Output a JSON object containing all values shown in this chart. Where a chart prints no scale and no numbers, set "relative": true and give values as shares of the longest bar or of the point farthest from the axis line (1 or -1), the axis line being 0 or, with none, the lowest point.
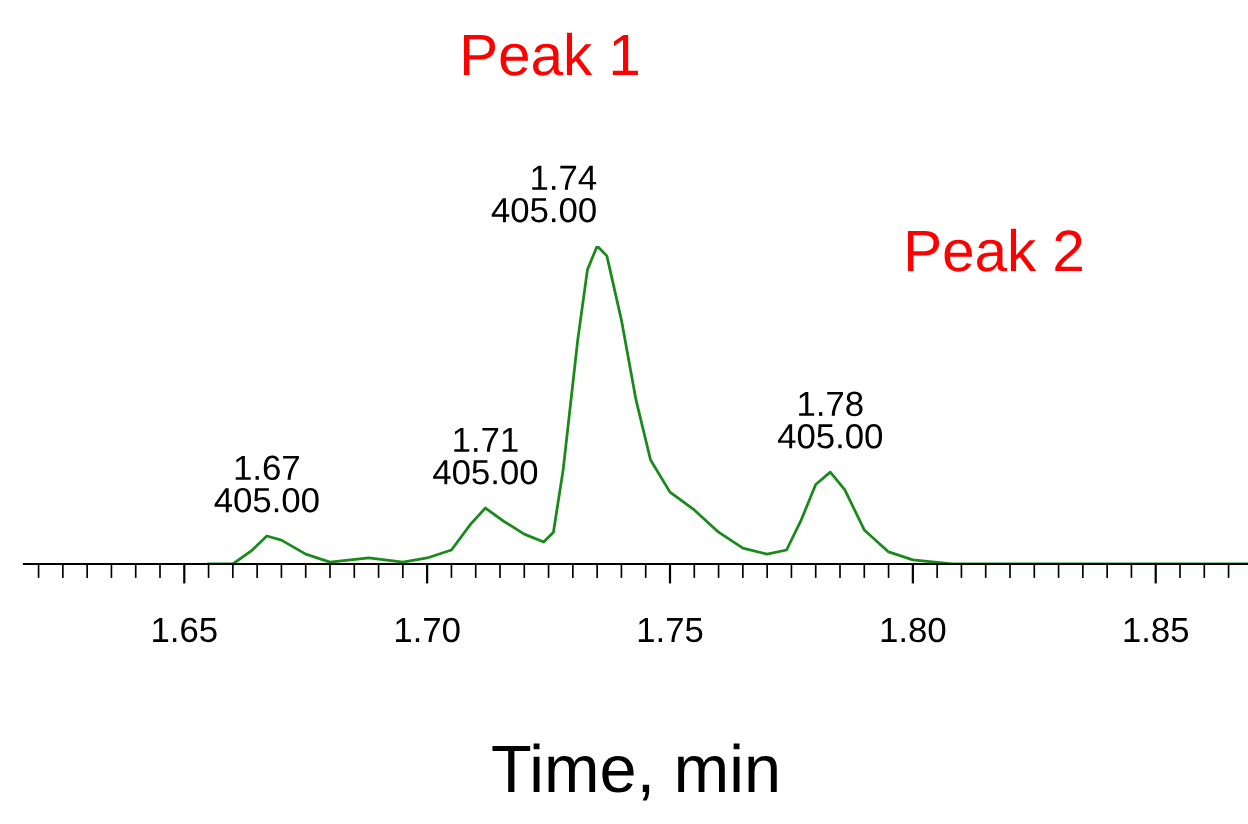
{
  "chart_data": {
    "type": "line",
    "relative": true,
    "xlabel": "Time, min",
    "x": [
      1.655,
      1.66,
      1.664,
      1.667,
      1.67,
      1.675,
      1.68,
      1.688,
      1.695,
      1.7,
      1.705,
      1.709,
      1.712,
      1.716,
      1.72,
      1.724,
      1.726,
      1.728,
      1.731,
      1.733,
      1.735,
      1.737,
      1.74,
      1.743,
      1.746,
      1.75,
      1.755,
      1.76,
      1.765,
      1.77,
      1.774,
      1.777,
      1.78,
      1.783,
      1.786,
      1.79,
      1.795,
      1.8,
      1.808,
      1.869
    ],
    "series": [
      {
        "color": "#1a8a1a",
        "values": [
          0,
          0,
          0.044,
          0.088,
          0.075,
          0.031,
          0.006,
          0.019,
          0.006,
          0.019,
          0.044,
          0.126,
          0.176,
          0.132,
          0.094,
          0.069,
          0.1,
          0.296,
          0.704,
          0.925,
          1,
          0.969,
          0.767,
          0.516,
          0.327,
          0.226,
          0.17,
          0.1,
          0.05,
          0.031,
          0.044,
          0.138,
          0.25,
          0.289,
          0.233,
          0.107,
          0.038,
          0.013,
          0,
          0
        ]
      }
    ],
    "xlim": [
      1.617,
      1.869
    ],
    "xticks": [
      {
        "value": 1.62,
        "label": null
      },
      {
        "value": 1.625,
        "label": null
      },
      {
        "value": 1.63,
        "label": null
      },
      {
        "value": 1.635,
        "label": null
      },
      {
        "value": 1.64,
        "label": null
      },
      {
        "value": 1.645,
        "label": null
      },
      {
        "value": 1.65,
        "label": "1.65"
      },
      {
        "value": 1.655,
        "label": null
      },
      {
        "value": 1.66,
        "label": null
      },
      {
        "value": 1.665,
        "label": null
      },
      {
        "value": 1.67,
        "label": null
      },
      {
        "value": 1.675,
        "label": null
      },
      {
        "value": 1.68,
        "label": null
      },
      {
        "value": 1.685,
        "label": null
      },
      {
        "value": 1.69,
        "label": null
      },
      {
        "value": 1.695,
        "label": null
      },
      {
        "value": 1.7,
        "label": "1.70"
      },
      {
        "value": 1.705,
        "label": null
      },
      {
        "value": 1.71,
        "label": null
      },
      {
        "value": 1.715,
        "label": null
      },
      {
        "value": 1.72,
        "label": null
      },
      {
        "value": 1.725,
        "label": null
      },
      {
        "value": 1.73,
        "label": null
      },
      {
        "value": 1.735,
        "label": null
      },
      {
        "value": 1.74,
        "label": null
      },
      {
        "value": 1.745,
        "label": null
      },
      {
        "value": 1.75,
        "label": "1.75"
      },
      {
        "value": 1.755,
        "label": null
      },
      {
        "value": 1.76,
        "label": null
      },
      {
        "value": 1.765,
        "label": null
      },
      {
        "value": 1.77,
        "label": null
      },
      {
        "value": 1.775,
        "label": null
      },
      {
        "value": 1.78,
        "label": null
      },
      {
        "value": 1.785,
        "label": null
      },
      {
        "value": 1.79,
        "label": null
      },
      {
        "value": 1.795,
        "label": null
      },
      {
        "value": 1.8,
        "label": "1.80"
      },
      {
        "value": 1.805,
        "label": null
      },
      {
        "value": 1.81,
        "label": null
      },
      {
        "value": 1.815,
        "label": null
      },
      {
        "value": 1.82,
        "label": null
      },
      {
        "value": 1.825,
        "label": null
      },
      {
        "value": 1.83,
        "label": null
      },
      {
        "value": 1.835,
        "label": null
      },
      {
        "value": 1.84,
        "label": null
      },
      {
        "value": 1.845,
        "label": null
      },
      {
        "value": 1.85,
        "label": "1.85"
      },
      {
        "value": 1.855,
        "label": null
      },
      {
        "value": 1.86,
        "label": null
      },
      {
        "value": 1.865,
        "label": null
      }
    ],
    "grid": false,
    "legend": false,
    "tick_labels": "x",
    "annotations": [
      {
        "text": "1.67\n405.00",
        "x": 1.667,
        "y": 0.088
      },
      {
        "text": "1.71\n405.00",
        "x": 1.712,
        "y": 0.176
      },
      {
        "text": "1.74\n405.00",
        "x": 1.735,
        "y": 1
      },
      {
        "text": "1.78\n405.00",
        "x": 1.783,
        "y": 0.289
      },
      "Peak 1",
      "Peak 2"
    ]
  }
}
